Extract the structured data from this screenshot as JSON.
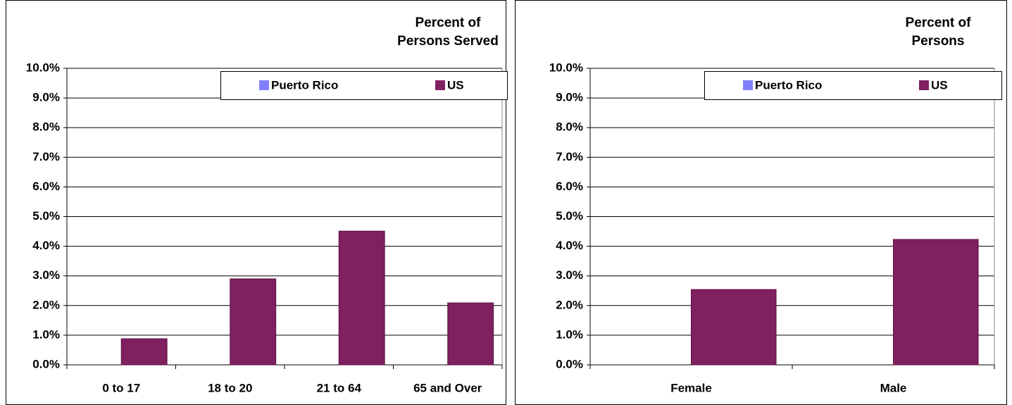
{
  "chart_data": [
    {
      "type": "bar",
      "title": "Percent of Persons Served",
      "categories": [
        "0 to 17",
        "18 to 20",
        "21 to 64",
        "65 and Over"
      ],
      "series": [
        {
          "name": "Puerto Rico",
          "color": "#8080ff",
          "values": [
            0,
            0,
            0,
            0
          ]
        },
        {
          "name": "US",
          "color": "#802060",
          "values": [
            0.88,
            2.9,
            4.51,
            2.09
          ]
        }
      ],
      "ylim": [
        0,
        10
      ],
      "yticks": [
        {
          "value": 0,
          "label": "0.0%"
        },
        {
          "value": 1,
          "label": "1.0%"
        },
        {
          "value": 2,
          "label": "2.0%"
        },
        {
          "value": 3,
          "label": "3.0%"
        },
        {
          "value": 4,
          "label": "4.0%"
        },
        {
          "value": 5,
          "label": "5.0%"
        },
        {
          "value": 6,
          "label": "6.0%"
        },
        {
          "value": 7,
          "label": "7.0%"
        },
        {
          "value": 8,
          "label": "8.0%"
        },
        {
          "value": 9,
          "label": "9.0%"
        },
        {
          "value": 10,
          "label": "10.0%"
        }
      ],
      "grid": true,
      "legend": "upper right"
    },
    {
      "type": "bar",
      "title": "Percent of Persons",
      "categories": [
        "Female",
        "Male"
      ],
      "series": [
        {
          "name": "Puerto Rico",
          "color": "#8080ff",
          "values": [
            0,
            0
          ]
        },
        {
          "name": "US",
          "color": "#802060",
          "values": [
            2.54,
            4.23
          ]
        }
      ],
      "ylim": [
        0,
        10
      ],
      "yticks": [
        {
          "value": 0,
          "label": "0.0%"
        },
        {
          "value": 1,
          "label": "1.0%"
        },
        {
          "value": 2,
          "label": "2.0%"
        },
        {
          "value": 3,
          "label": "3.0%"
        },
        {
          "value": 4,
          "label": "4.0%"
        },
        {
          "value": 5,
          "label": "5.0%"
        },
        {
          "value": 6,
          "label": "6.0%"
        },
        {
          "value": 7,
          "label": "7.0%"
        },
        {
          "value": 8,
          "label": "8.0%"
        },
        {
          "value": 9,
          "label": "9.0%"
        },
        {
          "value": 10,
          "label": "10.0%"
        }
      ],
      "grid": true,
      "legend": "upper right"
    }
  ]
}
